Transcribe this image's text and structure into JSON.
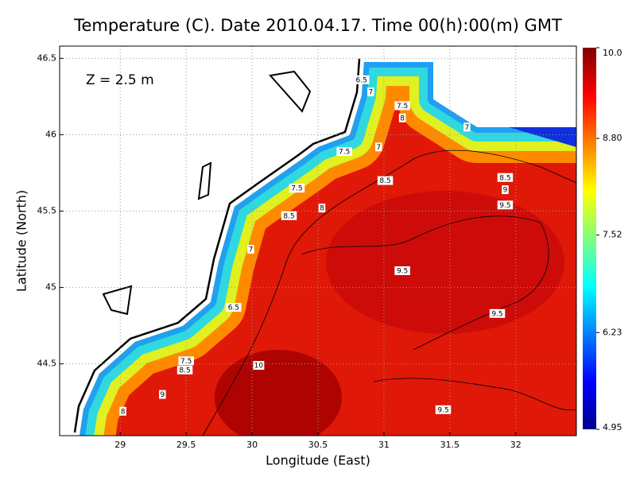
{
  "chart_data": {
    "type": "contour_map",
    "title": "Temperature (C). Date 2010.04.17. Time 00(h):00(m) GMT",
    "annotation": "Z = 2.5 m",
    "x_label": "Longitude (East)",
    "y_label": "Latitude (North)",
    "xlim": [
      28.54,
      32.46
    ],
    "ylim": [
      44.03,
      46.58
    ],
    "xticks": [
      29,
      29.5,
      30,
      30.5,
      31,
      31.5,
      32
    ],
    "yticks": [
      44.5,
      45,
      45.5,
      46,
      46.5
    ],
    "grid": true,
    "colorbar": {
      "lim": [
        4.95,
        10
      ],
      "ticks": [
        {
          "value": 10,
          "label": "10.0"
        },
        {
          "value": 8.8,
          "label": "8.80"
        },
        7.52,
        6.23,
        4.95
      ],
      "colormap": [
        "#00008f",
        "#0000ff",
        "#0080ff",
        "#00ffff",
        "#80ff80",
        "#ffff00",
        "#ff8000",
        "#ff0000",
        "#800000"
      ]
    },
    "contour_labels": [
      {
        "lon": 30.83,
        "lat": 46.36,
        "value": 6.5
      },
      {
        "lon": 30.9,
        "lat": 46.28,
        "value": 7
      },
      {
        "lon": 31.14,
        "lat": 46.19,
        "value": 7.5
      },
      {
        "lon": 31.14,
        "lat": 46.11,
        "value": 8
      },
      {
        "lon": 31.63,
        "lat": 46.05,
        "value": 7
      },
      {
        "lon": 30.96,
        "lat": 45.92,
        "value": 7
      },
      {
        "lon": 30.7,
        "lat": 45.89,
        "value": 7.5
      },
      {
        "lon": 31.92,
        "lat": 45.72,
        "value": 8.5
      },
      {
        "lon": 31.92,
        "lat": 45.64,
        "value": 9
      },
      {
        "lon": 31.01,
        "lat": 45.7,
        "value": 8.5
      },
      {
        "lon": 30.34,
        "lat": 45.65,
        "value": 7.5
      },
      {
        "lon": 30.53,
        "lat": 45.52,
        "value": 8
      },
      {
        "lon": 31.92,
        "lat": 45.54,
        "value": 9.5
      },
      {
        "lon": 30.28,
        "lat": 45.47,
        "value": 8.5
      },
      {
        "lon": 29.99,
        "lat": 45.25,
        "value": 7
      },
      {
        "lon": 31.14,
        "lat": 45.11,
        "value": 9.5
      },
      {
        "lon": 29.86,
        "lat": 44.87,
        "value": 6.5
      },
      {
        "lon": 31.86,
        "lat": 44.83,
        "value": 9.5
      },
      {
        "lon": 30.05,
        "lat": 44.49,
        "value": 10
      },
      {
        "lon": 29.5,
        "lat": 44.52,
        "value": 7.5
      },
      {
        "lon": 29.49,
        "lat": 44.46,
        "value": 8.5
      },
      {
        "lon": 29.32,
        "lat": 44.3,
        "value": 9
      },
      {
        "lon": 29.02,
        "lat": 44.19,
        "value": 8
      },
      {
        "lon": 31.45,
        "lat": 44.2,
        "value": 9.5
      }
    ]
  }
}
